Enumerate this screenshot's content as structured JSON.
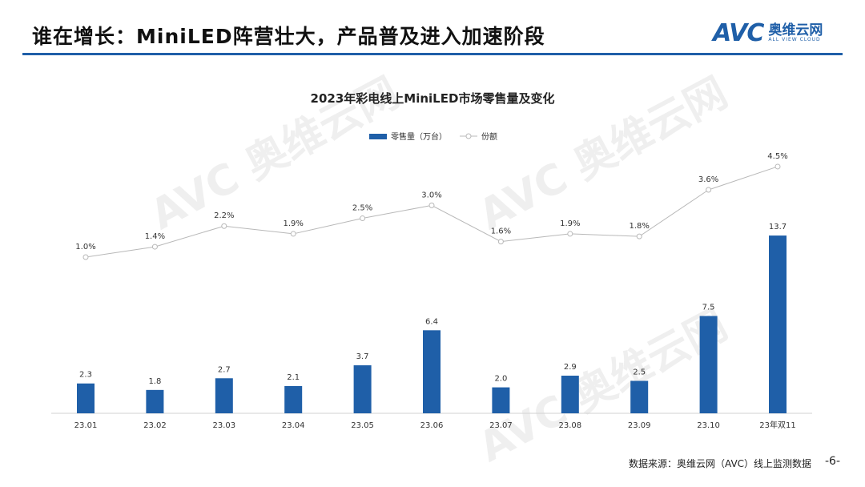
{
  "header": {
    "title": "谁在增长：MiniLED阵营壮大，产品普及进入加速阶段"
  },
  "logo": {
    "brand": "AVC",
    "name_cn": "奥维云网",
    "name_en": "ALL VIEW CLOUD"
  },
  "footer": {
    "source": "数据来源：奥维云网（AVC）线上监测数据",
    "page": "-6-"
  },
  "colors": {
    "bar": "#1f5fa8",
    "line": "#b8b8b8"
  },
  "chart_data": {
    "type": "bar+line",
    "title": "2023年彩电线上MiniLED市场零售量及变化",
    "categories": [
      "23.01",
      "23.02",
      "23.03",
      "23.04",
      "23.05",
      "23.06",
      "23.07",
      "23.08",
      "23.09",
      "23.10",
      "23年双11"
    ],
    "series": [
      {
        "name": "零售量（万台）",
        "type": "bar",
        "values": [
          2.3,
          1.8,
          2.7,
          2.1,
          3.7,
          6.4,
          2.0,
          2.9,
          2.5,
          7.5,
          13.7
        ],
        "labels": [
          "2.3",
          "1.8",
          "2.7",
          "2.1",
          "3.7",
          "6.4",
          "2.0",
          "2.9",
          "2.5",
          "7.5",
          "13.7"
        ]
      },
      {
        "name": "份额",
        "type": "line",
        "values": [
          1.0,
          1.4,
          2.2,
          1.9,
          2.5,
          3.0,
          1.6,
          1.9,
          1.8,
          3.6,
          4.5
        ],
        "labels": [
          "1.0%",
          "1.4%",
          "2.2%",
          "1.9%",
          "2.5%",
          "3.0%",
          "1.6%",
          "1.9%",
          "1.8%",
          "3.6%",
          "4.5%"
        ]
      }
    ],
    "legend": "top-center",
    "grid": false
  }
}
